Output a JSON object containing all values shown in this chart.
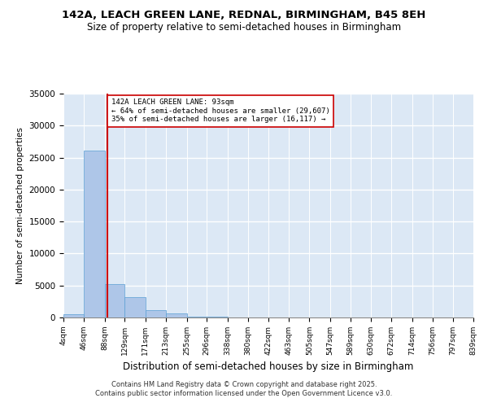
{
  "title_line1": "142A, LEACH GREEN LANE, REDNAL, BIRMINGHAM, B45 8EH",
  "title_line2": "Size of property relative to semi-detached houses in Birmingham",
  "xlabel": "Distribution of semi-detached houses by size in Birmingham",
  "ylabel": "Number of semi-detached properties",
  "bin_edges": [
    4,
    46,
    88,
    129,
    171,
    213,
    255,
    296,
    338,
    380,
    422,
    463,
    505,
    547,
    589,
    630,
    672,
    714,
    756,
    797,
    839
  ],
  "bin_heights": [
    500,
    26100,
    5200,
    3200,
    1200,
    600,
    150,
    80,
    40,
    20,
    10,
    5,
    3,
    2,
    1,
    1,
    0,
    0,
    0,
    0
  ],
  "bar_color": "#aec6e8",
  "bar_edge_color": "#5a9fd4",
  "property_size": 93,
  "annotation_title": "142A LEACH GREEN LANE: 93sqm",
  "annotation_line2": "← 64% of semi-detached houses are smaller (29,607)",
  "annotation_line3": "35% of semi-detached houses are larger (16,117) →",
  "vline_color": "#cc0000",
  "annotation_box_color": "#ffffff",
  "annotation_box_edge": "#cc0000",
  "ylim": [
    0,
    35000
  ],
  "yticks": [
    0,
    5000,
    10000,
    15000,
    20000,
    25000,
    30000,
    35000
  ],
  "background_color": "#dce8f5",
  "footer_line1": "Contains HM Land Registry data © Crown copyright and database right 2025.",
  "footer_line2": "Contains public sector information licensed under the Open Government Licence v3.0.",
  "tick_labels": [
    "4sqm",
    "46sqm",
    "88sqm",
    "129sqm",
    "171sqm",
    "213sqm",
    "255sqm",
    "296sqm",
    "338sqm",
    "380sqm",
    "422sqm",
    "463sqm",
    "505sqm",
    "547sqm",
    "589sqm",
    "630sqm",
    "672sqm",
    "714sqm",
    "756sqm",
    "797sqm",
    "839sqm"
  ]
}
